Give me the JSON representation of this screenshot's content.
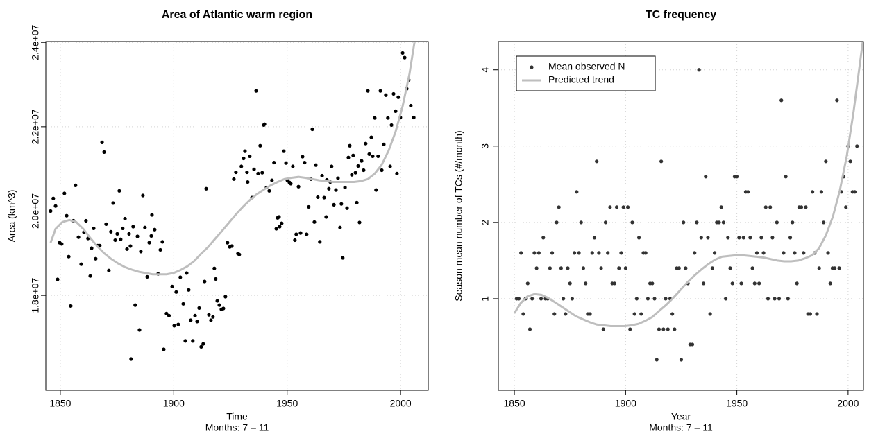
{
  "chart_data": [
    {
      "type": "scatter",
      "title": "Area of Atlantic warm region",
      "xlabel": "Time",
      "xlabel_sub": "Months: 7 – 11",
      "ylabel": "Area (km^3)",
      "xlim": [
        1843.6,
        2012.2
      ],
      "ylim": [
        15750000,
        24020000
      ],
      "xticks": [
        1850,
        1900,
        1950,
        2000
      ],
      "yticks": [
        {
          "value": 18000000,
          "label": "1.8e+07"
        },
        {
          "value": 20000000,
          "label": "2.0e+07"
        },
        {
          "value": 22000000,
          "label": "2.2e+07"
        },
        {
          "value": 24000000,
          "label": "2.4e+07"
        }
      ],
      "grid": true,
      "series": [
        {
          "style": "points",
          "color": "#000000",
          "x": [
            1845.7,
            1846.9,
            1847.9,
            1848.8,
            1849.7,
            1850.6,
            1851.8,
            1852.8,
            1853.7,
            1854.6,
            1855.8,
            1856.7,
            1858.0,
            1859.2,
            1860.4,
            1861.3,
            1862.2,
            1863.2,
            1863.8,
            1864.7,
            1865.6,
            1866.5,
            1867.4,
            1868.4,
            1869.3,
            1870.2,
            1871.4,
            1872.3,
            1873.3,
            1874.2,
            1875.1,
            1876.0,
            1876.6,
            1877.5,
            1878.5,
            1879.4,
            1880.3,
            1880.9,
            1881.2,
            1882.1,
            1883.0,
            1884.0,
            1884.9,
            1885.5,
            1886.4,
            1887.3,
            1888.3,
            1889.2,
            1890.1,
            1890.4,
            1891.6,
            1893.1,
            1894.1,
            1895.0,
            1895.6,
            1896.8,
            1897.9,
            1899.3,
            1900.2,
            1901.1,
            1902.0,
            1902.9,
            1904.2,
            1905.1,
            1905.7,
            1906.6,
            1907.5,
            1908.4,
            1909.4,
            1910.3,
            1911.2,
            1912.1,
            1913.0,
            1913.6,
            1914.3,
            1915.5,
            1916.4,
            1917.3,
            1917.9,
            1918.5,
            1919.2,
            1920.1,
            1921.0,
            1921.9,
            1922.8,
            1923.7,
            1924.7,
            1925.6,
            1926.5,
            1927.4,
            1928.3,
            1928.9,
            1929.8,
            1930.8,
            1931.4,
            1932.3,
            1932.6,
            1933.5,
            1934.5,
            1935.4,
            1936.3,
            1937.2,
            1938.1,
            1939.0,
            1939.7,
            1940.0,
            1940.9,
            1942.1,
            1943.3,
            1944.2,
            1945.2,
            1945.8,
            1946.4,
            1946.7,
            1947.6,
            1948.5,
            1949.5,
            1950.1,
            1951.0,
            1951.6,
            1952.5,
            1953.4,
            1954.0,
            1955.0,
            1955.9,
            1956.8,
            1957.7,
            1958.6,
            1959.5,
            1960.5,
            1961.1,
            1962.0,
            1962.6,
            1963.5,
            1964.4,
            1965.4,
            1966.3,
            1967.2,
            1967.5,
            1968.4,
            1969.0,
            1969.6,
            1970.6,
            1971.5,
            1972.4,
            1973.3,
            1973.9,
            1974.5,
            1975.5,
            1976.4,
            1977.0,
            1977.6,
            1978.5,
            1979.1,
            1980.1,
            1980.7,
            1981.3,
            1981.9,
            1982.8,
            1983.7,
            1984.6,
            1985.6,
            1986.2,
            1987.1,
            1987.7,
            1988.6,
            1989.2,
            1990.1,
            1991.1,
            1991.7,
            1992.6,
            1993.5,
            1994.4,
            1995.4,
            1996.0,
            1996.9,
            1997.8,
            1998.4,
            1999.0,
            1999.9,
            2000.9,
            2001.8,
            2002.7,
            2003.6,
            2004.5,
            2005.8
          ],
          "values": [
            20000000,
            20300000,
            20120000,
            18380000,
            19250000,
            19220000,
            20420000,
            19890000,
            18920000,
            17750000,
            19770000,
            20610000,
            19380000,
            18740000,
            19500000,
            19770000,
            19350000,
            18460000,
            19120000,
            19590000,
            18870000,
            19180000,
            19180000,
            21630000,
            21400000,
            19690000,
            18590000,
            19510000,
            20190000,
            19310000,
            19460000,
            20480000,
            19330000,
            19590000,
            19820000,
            19100000,
            19460000,
            19170000,
            16490000,
            19630000,
            17770000,
            19400000,
            17180000,
            19040000,
            20370000,
            19610000,
            18440000,
            19250000,
            19410000,
            19910000,
            19560000,
            18510000,
            19080000,
            19270000,
            16720000,
            17570000,
            17520000,
            18210000,
            17280000,
            18080000,
            17310000,
            18430000,
            17800000,
            16920000,
            18530000,
            18130000,
            17410000,
            16920000,
            17520000,
            17380000,
            17700000,
            16780000,
            16850000,
            18330000,
            20530000,
            17540000,
            17410000,
            17490000,
            18640000,
            18390000,
            17870000,
            17770000,
            17670000,
            17690000,
            17970000,
            19250000,
            19150000,
            19170000,
            20760000,
            20920000,
            18990000,
            18970000,
            21060000,
            21250000,
            21420000,
            20920000,
            20690000,
            21300000,
            20320000,
            20990000,
            22850000,
            20890000,
            21550000,
            20910000,
            22040000,
            22060000,
            20560000,
            20480000,
            20730000,
            21150000,
            19580000,
            19840000,
            19860000,
            19630000,
            19710000,
            21420000,
            21140000,
            20730000,
            20680000,
            20650000,
            21060000,
            19310000,
            19450000,
            20580000,
            19480000,
            21290000,
            21150000,
            19450000,
            20100000,
            20760000,
            21940000,
            19740000,
            21090000,
            20330000,
            19270000,
            20840000,
            20320000,
            19860000,
            20740000,
            20530000,
            20690000,
            21060000,
            20150000,
            20500000,
            20780000,
            19610000,
            20170000,
            18890000,
            20560000,
            20070000,
            21270000,
            21550000,
            20860000,
            21320000,
            20910000,
            20200000,
            21070000,
            19730000,
            21190000,
            20970000,
            21600000,
            22850000,
            21350000,
            21750000,
            21300000,
            22210000,
            20500000,
            21300000,
            22850000,
            20970000,
            21580000,
            22750000,
            22210000,
            21060000,
            22040000,
            22780000,
            22370000,
            20890000,
            22700000,
            22220000,
            23750000,
            23640000,
            22900000,
            23110000,
            22500000,
            22220000
          ]
        },
        {
          "style": "line",
          "color": "#bebebe",
          "x": [
            1845.7,
            1847.9,
            1850.9,
            1854.0,
            1857.0,
            1860.1,
            1863.2,
            1866.2,
            1869.3,
            1872.3,
            1875.4,
            1878.5,
            1881.5,
            1884.6,
            1887.6,
            1890.7,
            1893.8,
            1896.8,
            1899.9,
            1902.9,
            1906.0,
            1909.1,
            1912.1,
            1915.2,
            1918.2,
            1921.3,
            1924.4,
            1927.4,
            1930.5,
            1933.5,
            1936.6,
            1939.7,
            1942.7,
            1945.8,
            1948.8,
            1951.9,
            1955.0,
            1958.0,
            1961.1,
            1964.1,
            1967.2,
            1970.3,
            1973.3,
            1976.4,
            1979.5,
            1982.5,
            1985.6,
            1988.6,
            1991.7,
            1994.7,
            1997.8,
            2000.9,
            2003.9,
            2006.1
          ],
          "values": [
            19250000,
            19580000,
            19740000,
            19790000,
            19740000,
            19580000,
            19360000,
            19170000,
            19000000,
            18870000,
            18760000,
            18670000,
            18610000,
            18560000,
            18530000,
            18500000,
            18500000,
            18500000,
            18530000,
            18600000,
            18690000,
            18820000,
            18990000,
            19150000,
            19340000,
            19530000,
            19730000,
            19920000,
            20100000,
            20260000,
            20400000,
            20510000,
            20610000,
            20690000,
            20760000,
            20790000,
            20810000,
            20790000,
            20760000,
            20730000,
            20710000,
            20690000,
            20690000,
            20690000,
            20690000,
            20710000,
            20760000,
            20890000,
            21100000,
            21430000,
            21880000,
            22490000,
            23250000,
            24000000
          ]
        }
      ]
    },
    {
      "type": "scatter",
      "title": "TC frequency",
      "xlabel": "Year",
      "xlabel_sub": "Months: 7 – 11",
      "ylabel": "Season mean number of TCs (#/month)",
      "xlim": [
        1842.8,
        2006.9
      ],
      "ylim": [
        -0.2,
        4.37
      ],
      "xticks": [
        1850,
        1900,
        1950,
        2000
      ],
      "yticks": [
        1,
        2,
        3,
        4
      ],
      "grid": true,
      "legend": "top-left",
      "series": [
        {
          "name": "Mean observed N",
          "style": "points",
          "color": "#333333",
          "x": [
            1851,
            1852,
            1853,
            1854,
            1855,
            1856,
            1857,
            1858,
            1859,
            1860,
            1861,
            1862,
            1863,
            1864,
            1865,
            1866,
            1867,
            1868,
            1869,
            1870,
            1871,
            1872,
            1873,
            1874,
            1875,
            1876,
            1877,
            1878,
            1879,
            1880,
            1881,
            1882,
            1883,
            1884,
            1885,
            1886,
            1887,
            1888,
            1889,
            1890,
            1891,
            1892,
            1893,
            1894,
            1895,
            1896,
            1897,
            1898,
            1899,
            1900,
            1901,
            1902,
            1903,
            1904,
            1905,
            1906,
            1907,
            1908,
            1909,
            1910,
            1911,
            1912,
            1913,
            1914,
            1915,
            1916,
            1917,
            1918,
            1919,
            1920,
            1921,
            1922,
            1923,
            1924,
            1925,
            1926,
            1927,
            1928,
            1929,
            1930,
            1931,
            1932,
            1933,
            1934,
            1935,
            1936,
            1937,
            1938,
            1939,
            1940,
            1941,
            1942,
            1943,
            1944,
            1945,
            1946,
            1947,
            1948,
            1949,
            1950,
            1951,
            1952,
            1953,
            1954,
            1955,
            1956,
            1957,
            1958,
            1959,
            1960,
            1961,
            1962,
            1963,
            1964,
            1965,
            1966,
            1967,
            1968,
            1969,
            1970,
            1971,
            1972,
            1973,
            1974,
            1975,
            1976,
            1977,
            1978,
            1979,
            1980,
            1981,
            1982,
            1983,
            1984,
            1985,
            1986,
            1987,
            1988,
            1989,
            1990,
            1991,
            1992,
            1993,
            1994,
            1995,
            1996,
            1997,
            1998,
            1999,
            2000,
            2001,
            2002,
            2003,
            2004
          ],
          "values": [
            1.0,
            1.0,
            1.6,
            0.8,
            1.0,
            1.2,
            0.6,
            1.0,
            1.6,
            1.4,
            1.6,
            1.0,
            1.8,
            1.0,
            1.0,
            1.4,
            1.6,
            0.8,
            2.0,
            2.2,
            1.4,
            1.0,
            0.8,
            1.4,
            1.2,
            1.0,
            1.6,
            2.4,
            1.6,
            2.0,
            1.4,
            1.2,
            0.8,
            0.8,
            1.6,
            1.8,
            2.8,
            1.6,
            1.4,
            0.6,
            2.0,
            1.6,
            2.2,
            1.2,
            1.2,
            2.2,
            1.4,
            1.6,
            2.2,
            1.4,
            2.2,
            0.6,
            2.0,
            0.8,
            1.0,
            1.8,
            0.8,
            1.6,
            1.6,
            1.0,
            1.2,
            1.2,
            1.0,
            0.2,
            0.6,
            2.8,
            0.6,
            1.0,
            0.6,
            1.0,
            0.8,
            0.6,
            1.4,
            1.4,
            0.2,
            2.0,
            1.4,
            1.2,
            0.4,
            0.4,
            1.6,
            2.0,
            4.0,
            1.8,
            1.2,
            2.6,
            1.8,
            0.8,
            1.4,
            1.6,
            2.0,
            2.0,
            2.2,
            2.0,
            1.0,
            1.8,
            1.4,
            1.2,
            2.6,
            2.6,
            1.8,
            1.2,
            1.8,
            2.4,
            2.4,
            1.8,
            1.4,
            1.2,
            1.6,
            1.2,
            1.8,
            1.6,
            2.2,
            1.0,
            2.2,
            1.8,
            1.0,
            2.0,
            1.0,
            3.6,
            1.6,
            2.6,
            1.0,
            1.8,
            2.0,
            1.6,
            1.2,
            2.2,
            2.2,
            1.6,
            2.2,
            0.8,
            0.8,
            2.4,
            1.6,
            0.8,
            1.4,
            2.4,
            2.0,
            2.8,
            1.6,
            1.2,
            1.4,
            1.4,
            3.6,
            1.4,
            2.4,
            2.6,
            2.2,
            3.0,
            2.8,
            2.4,
            2.4,
            3.0
          ]
        },
        {
          "name": "Predicted trend",
          "style": "line",
          "color": "#bebebe",
          "x": [
            1850.0,
            1852.8,
            1855.9,
            1859.0,
            1862.1,
            1865.2,
            1868.4,
            1871.5,
            1874.6,
            1877.7,
            1880.8,
            1884.0,
            1887.1,
            1890.2,
            1893.3,
            1896.4,
            1899.6,
            1902.7,
            1905.8,
            1908.9,
            1912.0,
            1915.1,
            1918.3,
            1921.4,
            1924.5,
            1927.6,
            1930.8,
            1933.9,
            1937.0,
            1940.1,
            1943.3,
            1946.4,
            1949.5,
            1952.6,
            1955.7,
            1958.9,
            1962.0,
            1965.1,
            1968.2,
            1971.3,
            1974.4,
            1977.6,
            1980.7,
            1983.8,
            1986.9,
            1990.0,
            1993.2,
            1996.3,
            1999.4,
            2002.5,
            2005.0,
            2006.6
          ],
          "values": [
            0.81,
            0.94,
            1.03,
            1.06,
            1.05,
            1.01,
            0.95,
            0.89,
            0.83,
            0.77,
            0.73,
            0.69,
            0.66,
            0.65,
            0.64,
            0.64,
            0.64,
            0.65,
            0.67,
            0.71,
            0.76,
            0.84,
            0.92,
            1.01,
            1.11,
            1.21,
            1.3,
            1.38,
            1.45,
            1.51,
            1.55,
            1.56,
            1.57,
            1.57,
            1.56,
            1.55,
            1.54,
            1.52,
            1.5,
            1.49,
            1.49,
            1.5,
            1.53,
            1.57,
            1.66,
            1.83,
            2.08,
            2.42,
            2.87,
            3.46,
            4.01,
            4.37
          ]
        }
      ]
    }
  ]
}
